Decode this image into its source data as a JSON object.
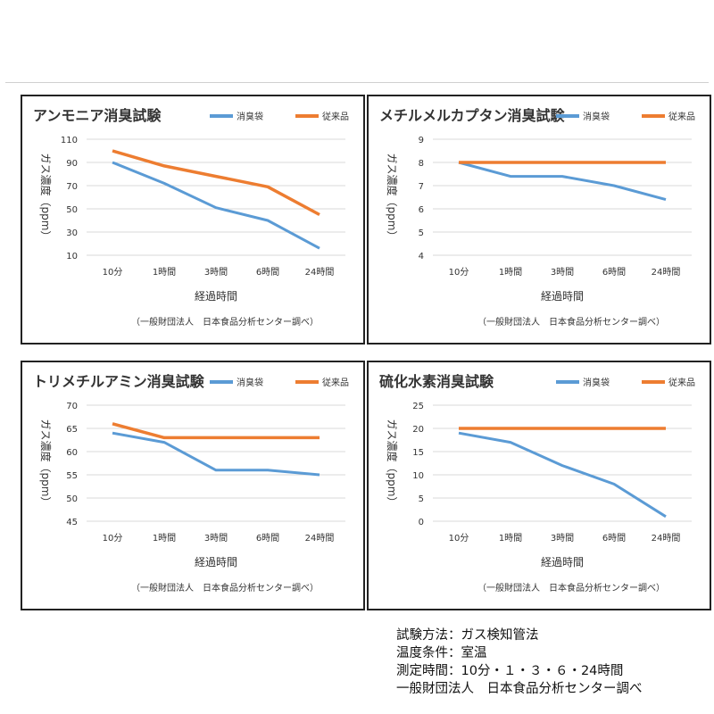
{
  "colors": {
    "new": "#5b9bd5",
    "old": "#ed7d31"
  },
  "legend": {
    "new": "消臭袋",
    "old": "従来品"
  },
  "xlabel": "経過時間",
  "ylabel": "ガス濃度（ppm）",
  "note": "（一般財団法人　日本食品分析センター調べ）",
  "chart_data": [
    {
      "type": "line",
      "title": "アンモニア消臭試験",
      "categories": [
        "10分",
        "1時間",
        "3時間",
        "6時間",
        "24時間"
      ],
      "series": [
        {
          "name": "消臭袋",
          "values": [
            90,
            72,
            51,
            40,
            16
          ]
        },
        {
          "name": "従来品",
          "values": [
            100,
            87,
            78,
            69,
            45
          ]
        }
      ],
      "yticks": [
        10,
        30,
        50,
        70,
        90,
        110
      ],
      "ylim": [
        10,
        110
      ],
      "xlabel": "経過時間",
      "ylabel": "ガス濃度（ppm）",
      "grid": true,
      "legend_position": "top-right"
    },
    {
      "type": "line",
      "title": "メチルメルカプタン消臭試験",
      "categories": [
        "10分",
        "1時間",
        "3時間",
        "6時間",
        "24時間"
      ],
      "series": [
        {
          "name": "消臭袋",
          "values": [
            8,
            7.4,
            7.4,
            7,
            6.4
          ]
        },
        {
          "name": "従来品",
          "values": [
            8,
            8,
            8,
            8,
            8
          ]
        }
      ],
      "yticks": [
        4,
        5,
        6,
        7,
        8,
        9
      ],
      "ylim": [
        4,
        9
      ],
      "xlabel": "経過時間",
      "ylabel": "ガス濃度（ppm）",
      "grid": true,
      "legend_position": "top-right"
    },
    {
      "type": "line",
      "title": "トリメチルアミン消臭試験",
      "categories": [
        "10分",
        "1時間",
        "3時間",
        "6時間",
        "24時間"
      ],
      "series": [
        {
          "name": "消臭袋",
          "values": [
            64,
            62,
            56,
            56,
            55
          ]
        },
        {
          "name": "従来品",
          "values": [
            66,
            63,
            63,
            63,
            63
          ]
        }
      ],
      "yticks": [
        45,
        50,
        55,
        60,
        65,
        70
      ],
      "ylim": [
        45,
        70
      ],
      "xlabel": "経過時間",
      "ylabel": "ガス濃度（ppm）",
      "grid": true,
      "legend_position": "top-right"
    },
    {
      "type": "line",
      "title": "硫化水素消臭試験",
      "categories": [
        "10分",
        "1時間",
        "3時間",
        "6時間",
        "24時間"
      ],
      "series": [
        {
          "name": "消臭袋",
          "values": [
            19,
            17,
            12,
            8,
            1
          ]
        },
        {
          "name": "従来品",
          "values": [
            20,
            20,
            20,
            20,
            20
          ]
        }
      ],
      "yticks": [
        0,
        5,
        10,
        15,
        20,
        25
      ],
      "ylim": [
        0,
        25
      ],
      "xlabel": "経過時間",
      "ylabel": "ガス濃度（ppm）",
      "grid": true,
      "legend_position": "top-right"
    }
  ],
  "footer": {
    "method": "試験方法：ガス検知管法",
    "temp": "温度条件：室温",
    "times": "測定時間：10分・１・３・６・24時間",
    "org": "一般財団法人　日本食品分析センター調べ"
  }
}
